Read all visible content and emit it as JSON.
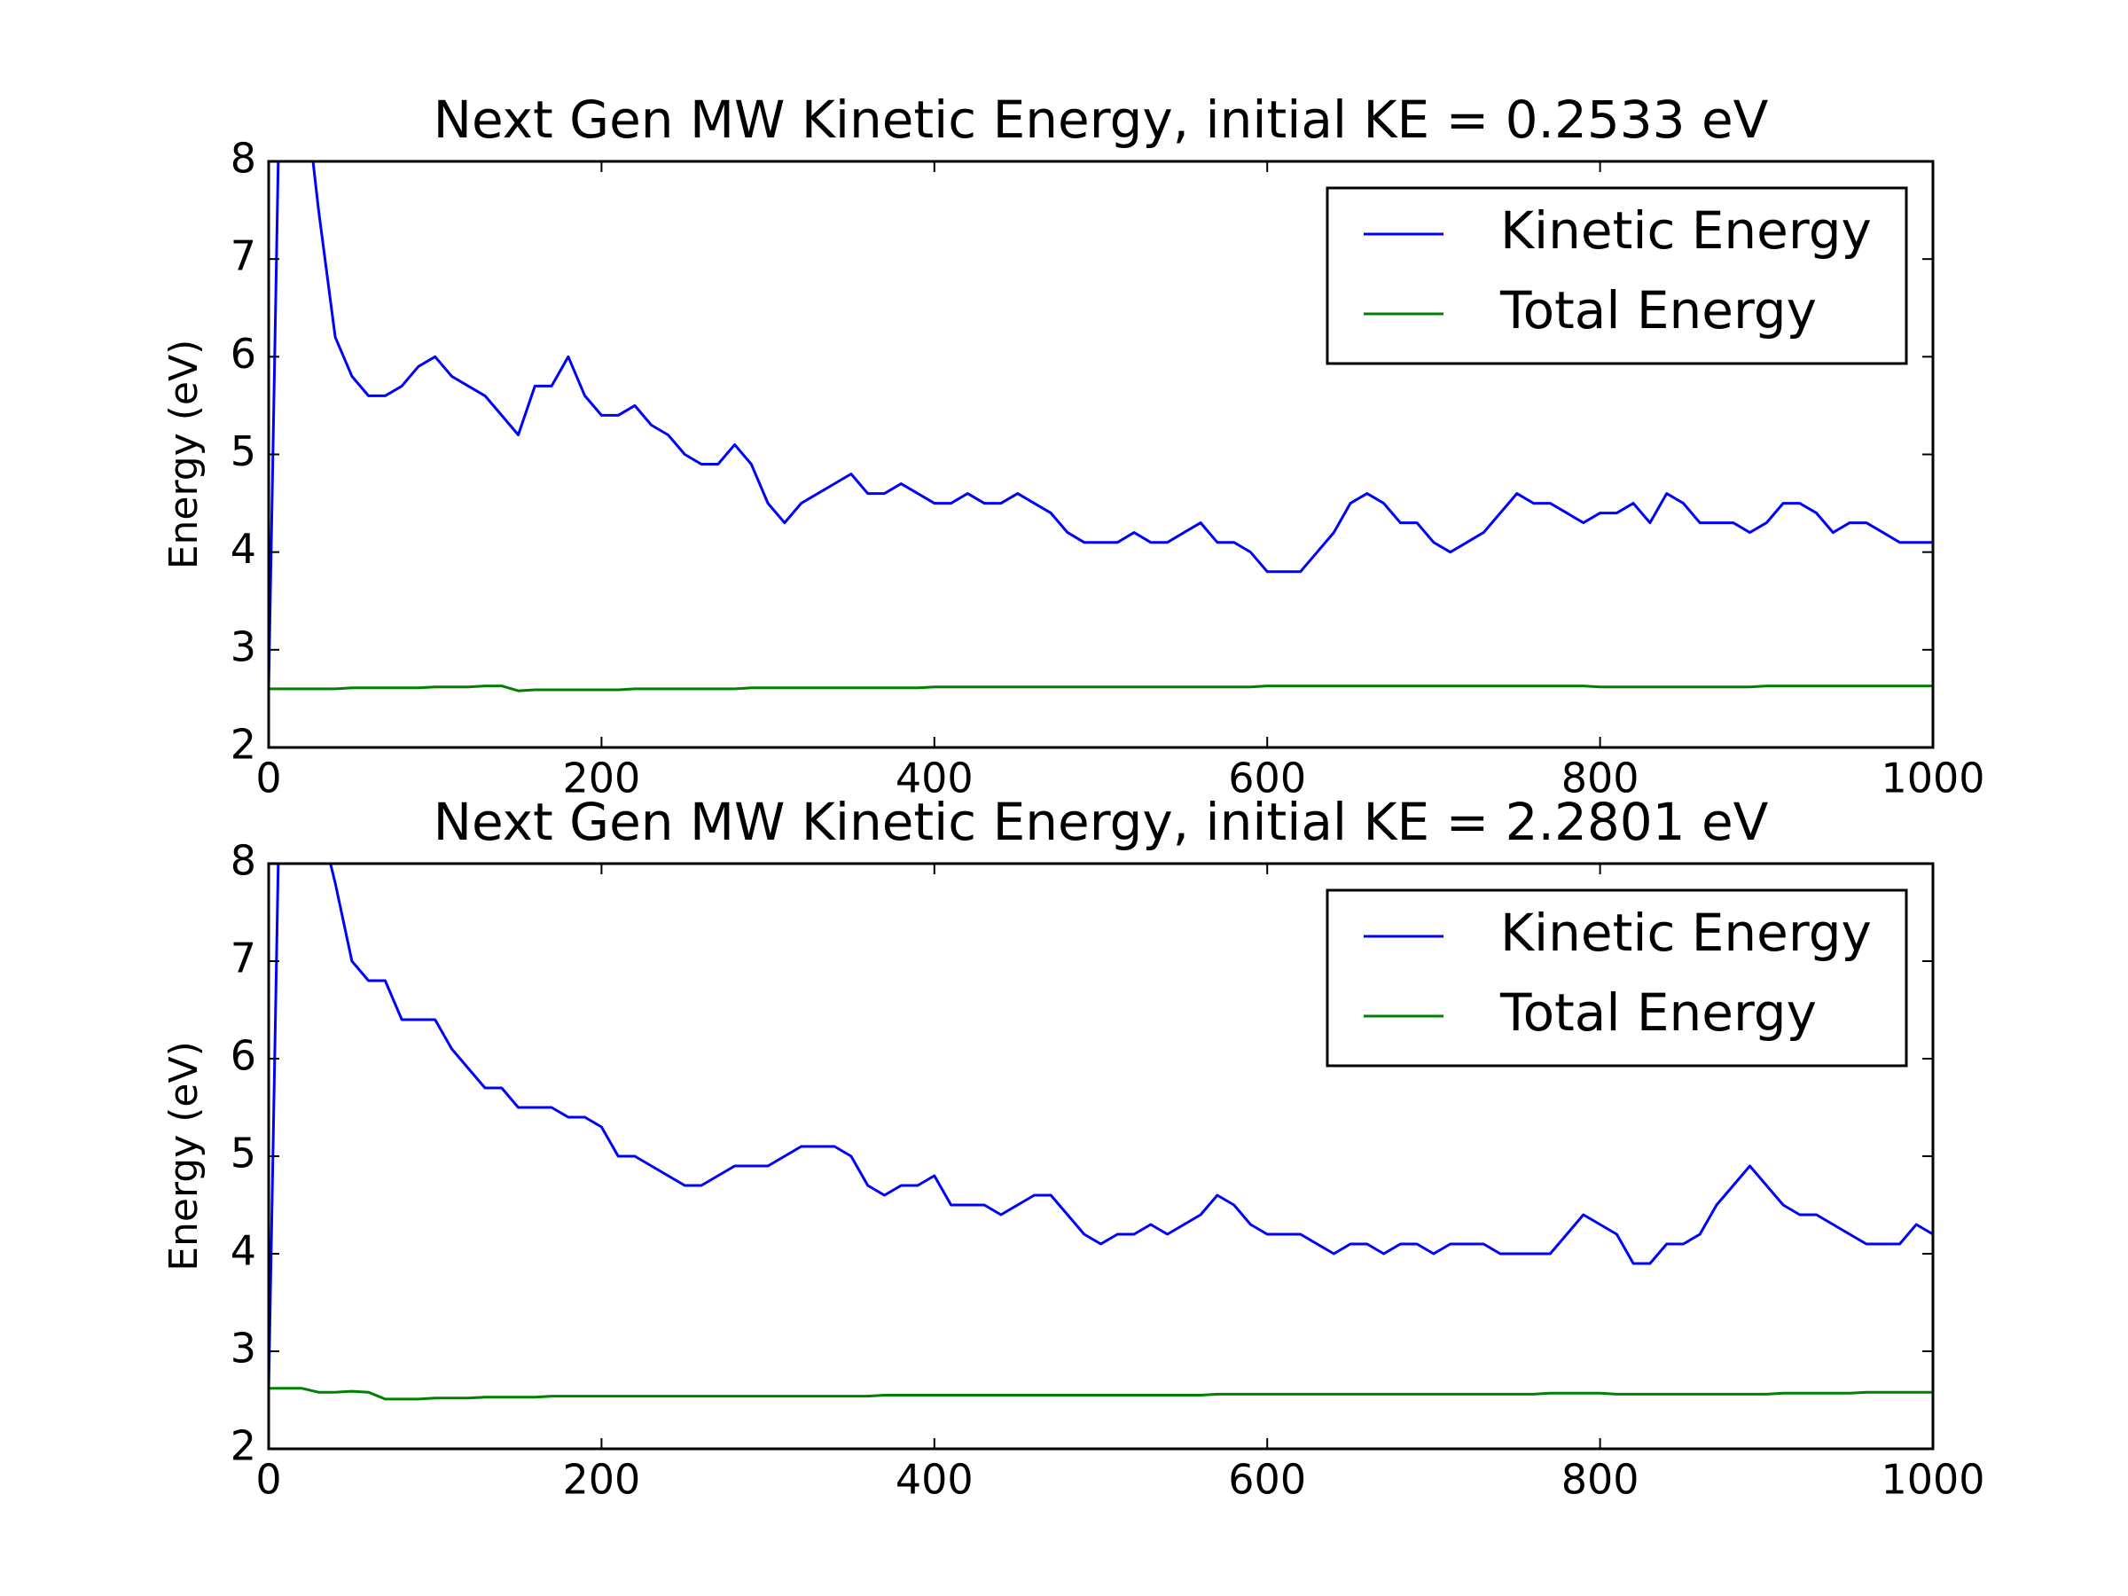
{
  "chart_data": [
    {
      "type": "line",
      "title": "Next Gen MW Kinetic Energy, initial KE = 0.2533 eV",
      "ylabel": "Energy (eV)",
      "x": [
        0,
        10,
        20,
        30,
        40,
        50,
        60,
        70,
        80,
        90,
        100,
        110,
        120,
        130,
        140,
        150,
        160,
        170,
        180,
        190,
        200,
        210,
        220,
        230,
        240,
        250,
        260,
        270,
        280,
        290,
        300,
        310,
        320,
        330,
        340,
        350,
        360,
        370,
        380,
        390,
        400,
        410,
        420,
        430,
        440,
        450,
        460,
        470,
        480,
        490,
        500,
        510,
        520,
        530,
        540,
        550,
        560,
        570,
        580,
        590,
        600,
        610,
        620,
        630,
        640,
        650,
        660,
        670,
        680,
        690,
        700,
        710,
        720,
        730,
        740,
        750,
        760,
        770,
        780,
        790,
        800,
        810,
        820,
        830,
        840,
        850,
        860,
        870,
        880,
        890,
        900,
        910,
        920,
        930,
        940,
        950,
        960,
        970,
        980,
        990,
        1000
      ],
      "series": [
        {
          "name": "Kinetic Energy",
          "color": "#0000ff",
          "values": [
            2.6,
            12,
            9,
            7.5,
            6.2,
            5.8,
            5.6,
            5.6,
            5.7,
            5.9,
            6.0,
            5.8,
            5.7,
            5.6,
            5.4,
            5.2,
            5.7,
            5.7,
            6.0,
            5.6,
            5.4,
            5.4,
            5.5,
            5.3,
            5.2,
            5.0,
            4.9,
            4.9,
            5.1,
            4.9,
            4.5,
            4.3,
            4.5,
            4.6,
            4.7,
            4.8,
            4.6,
            4.6,
            4.7,
            4.6,
            4.5,
            4.5,
            4.6,
            4.5,
            4.5,
            4.6,
            4.5,
            4.4,
            4.2,
            4.1,
            4.1,
            4.1,
            4.2,
            4.1,
            4.1,
            4.2,
            4.3,
            4.1,
            4.1,
            4.0,
            3.8,
            3.8,
            3.8,
            4.0,
            4.2,
            4.5,
            4.6,
            4.5,
            4.3,
            4.3,
            4.1,
            4.0,
            4.1,
            4.2,
            4.4,
            4.6,
            4.5,
            4.5,
            4.4,
            4.3,
            4.4,
            4.4,
            4.5,
            4.3,
            4.6,
            4.5,
            4.3,
            4.3,
            4.3,
            4.2,
            4.3,
            4.5,
            4.5,
            4.4,
            4.2,
            4.3,
            4.3,
            4.2,
            4.1,
            4.1,
            4.1
          ]
        },
        {
          "name": "Total Energy",
          "color": "#008000",
          "values": [
            2.6,
            2.6,
            2.6,
            2.6,
            2.6,
            2.61,
            2.61,
            2.61,
            2.61,
            2.61,
            2.62,
            2.62,
            2.62,
            2.63,
            2.63,
            2.58,
            2.59,
            2.59,
            2.59,
            2.59,
            2.59,
            2.59,
            2.6,
            2.6,
            2.6,
            2.6,
            2.6,
            2.6,
            2.6,
            2.61,
            2.61,
            2.61,
            2.61,
            2.61,
            2.61,
            2.61,
            2.61,
            2.61,
            2.61,
            2.61,
            2.62,
            2.62,
            2.62,
            2.62,
            2.62,
            2.62,
            2.62,
            2.62,
            2.62,
            2.62,
            2.62,
            2.62,
            2.62,
            2.62,
            2.62,
            2.62,
            2.62,
            2.62,
            2.62,
            2.62,
            2.63,
            2.63,
            2.63,
            2.63,
            2.63,
            2.63,
            2.63,
            2.63,
            2.63,
            2.63,
            2.63,
            2.63,
            2.63,
            2.63,
            2.63,
            2.63,
            2.63,
            2.63,
            2.63,
            2.63,
            2.62,
            2.62,
            2.62,
            2.62,
            2.62,
            2.62,
            2.62,
            2.62,
            2.62,
            2.62,
            2.63,
            2.63,
            2.63,
            2.63,
            2.63,
            2.63,
            2.63,
            2.63,
            2.63,
            2.63,
            2.63
          ]
        }
      ],
      "xlim": [
        0,
        1000
      ],
      "xticks": [
        0,
        200,
        400,
        600,
        800,
        1000
      ],
      "ylim": [
        2,
        8
      ],
      "yticks": [
        2,
        3,
        4,
        5,
        6,
        7,
        8
      ],
      "legend": "upper right",
      "grid": false
    },
    {
      "type": "line",
      "title": "Next Gen MW Kinetic Energy, initial KE = 2.2801 eV",
      "ylabel": "Energy (eV)",
      "x": [
        0,
        10,
        20,
        30,
        40,
        50,
        60,
        70,
        80,
        90,
        100,
        110,
        120,
        130,
        140,
        150,
        160,
        170,
        180,
        190,
        200,
        210,
        220,
        230,
        240,
        250,
        260,
        270,
        280,
        290,
        300,
        310,
        320,
        330,
        340,
        350,
        360,
        370,
        380,
        390,
        400,
        410,
        420,
        430,
        440,
        450,
        460,
        470,
        480,
        490,
        500,
        510,
        520,
        530,
        540,
        550,
        560,
        570,
        580,
        590,
        600,
        610,
        620,
        630,
        640,
        650,
        660,
        670,
        680,
        690,
        700,
        710,
        720,
        730,
        740,
        750,
        760,
        770,
        780,
        790,
        800,
        810,
        820,
        830,
        840,
        850,
        860,
        870,
        880,
        890,
        900,
        910,
        920,
        930,
        940,
        950,
        960,
        970,
        980,
        990,
        1000
      ],
      "series": [
        {
          "name": "Kinetic Energy",
          "color": "#0000ff",
          "values": [
            2.6,
            12,
            10,
            8.5,
            7.8,
            7.0,
            6.8,
            6.8,
            6.4,
            6.4,
            6.4,
            6.1,
            5.9,
            5.7,
            5.7,
            5.5,
            5.5,
            5.5,
            5.4,
            5.4,
            5.3,
            5.0,
            5.0,
            4.9,
            4.8,
            4.7,
            4.7,
            4.8,
            4.9,
            4.9,
            4.9,
            5.0,
            5.1,
            5.1,
            5.1,
            5.0,
            4.7,
            4.6,
            4.7,
            4.7,
            4.8,
            4.5,
            4.5,
            4.5,
            4.4,
            4.5,
            4.6,
            4.6,
            4.4,
            4.2,
            4.1,
            4.2,
            4.2,
            4.3,
            4.2,
            4.3,
            4.4,
            4.6,
            4.5,
            4.3,
            4.2,
            4.2,
            4.2,
            4.1,
            4.0,
            4.1,
            4.1,
            4.0,
            4.1,
            4.1,
            4.0,
            4.1,
            4.1,
            4.1,
            4.0,
            4.0,
            4.0,
            4.0,
            4.2,
            4.4,
            4.3,
            4.2,
            3.9,
            3.9,
            4.1,
            4.1,
            4.2,
            4.5,
            4.7,
            4.9,
            4.7,
            4.5,
            4.4,
            4.4,
            4.3,
            4.2,
            4.1,
            4.1,
            4.1,
            4.3,
            4.2
          ]
        },
        {
          "name": "Total Energy",
          "color": "#008000",
          "values": [
            2.62,
            2.62,
            2.62,
            2.58,
            2.58,
            2.59,
            2.58,
            2.51,
            2.51,
            2.51,
            2.52,
            2.52,
            2.52,
            2.53,
            2.53,
            2.53,
            2.53,
            2.54,
            2.54,
            2.54,
            2.54,
            2.54,
            2.54,
            2.54,
            2.54,
            2.54,
            2.54,
            2.54,
            2.54,
            2.54,
            2.54,
            2.54,
            2.54,
            2.54,
            2.54,
            2.54,
            2.54,
            2.55,
            2.55,
            2.55,
            2.55,
            2.55,
            2.55,
            2.55,
            2.55,
            2.55,
            2.55,
            2.55,
            2.55,
            2.55,
            2.55,
            2.55,
            2.55,
            2.55,
            2.55,
            2.55,
            2.55,
            2.56,
            2.56,
            2.56,
            2.56,
            2.56,
            2.56,
            2.56,
            2.56,
            2.56,
            2.56,
            2.56,
            2.56,
            2.56,
            2.56,
            2.56,
            2.56,
            2.56,
            2.56,
            2.56,
            2.56,
            2.57,
            2.57,
            2.57,
            2.57,
            2.56,
            2.56,
            2.56,
            2.56,
            2.56,
            2.56,
            2.56,
            2.56,
            2.56,
            2.56,
            2.57,
            2.57,
            2.57,
            2.57,
            2.57,
            2.58,
            2.58,
            2.58,
            2.58,
            2.58
          ]
        }
      ],
      "xlim": [
        0,
        1000
      ],
      "xticks": [
        0,
        200,
        400,
        600,
        800,
        1000
      ],
      "ylim": [
        2,
        8
      ],
      "yticks": [
        2,
        3,
        4,
        5,
        6,
        7,
        8
      ],
      "legend": "upper right",
      "grid": false
    }
  ]
}
